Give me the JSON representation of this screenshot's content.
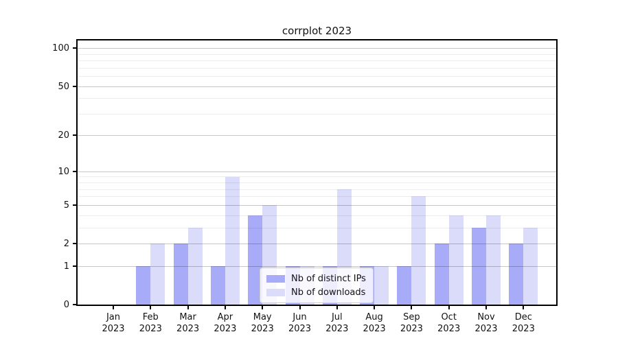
{
  "chart_data": {
    "type": "bar",
    "title": "corrplot 2023",
    "categories": [
      "Jan",
      "Feb",
      "Mar",
      "Apr",
      "May",
      "Jun",
      "Jul",
      "Aug",
      "Sep",
      "Oct",
      "Nov",
      "Dec"
    ],
    "year_label": "2023",
    "series": [
      {
        "name": "Nb of distinct IPs",
        "color": "#a8abf8",
        "values": [
          0,
          1,
          2,
          1,
          4,
          1,
          1,
          1,
          1,
          2,
          3,
          2
        ]
      },
      {
        "name": "Nb of downloads",
        "color": "#dadcf9",
        "values": [
          0,
          2,
          3,
          9,
          5,
          1,
          7,
          1,
          6,
          4,
          4,
          3
        ]
      }
    ],
    "xlabel": "",
    "ylabel": "",
    "y_scale": "log1p",
    "y_ticks": [
      0,
      1,
      2,
      5,
      10,
      20,
      50,
      100
    ],
    "y_minor_gridlines": [
      3,
      4,
      6,
      7,
      8,
      9,
      30,
      40,
      60,
      70,
      80,
      90
    ],
    "ylim": [
      0,
      110
    ],
    "grid": "on",
    "legend_position": "lower center",
    "colors": {
      "spine": "#000000",
      "major_grid": "#c7c7c7",
      "minor_grid": "#ececec",
      "background": "#ffffff"
    }
  }
}
